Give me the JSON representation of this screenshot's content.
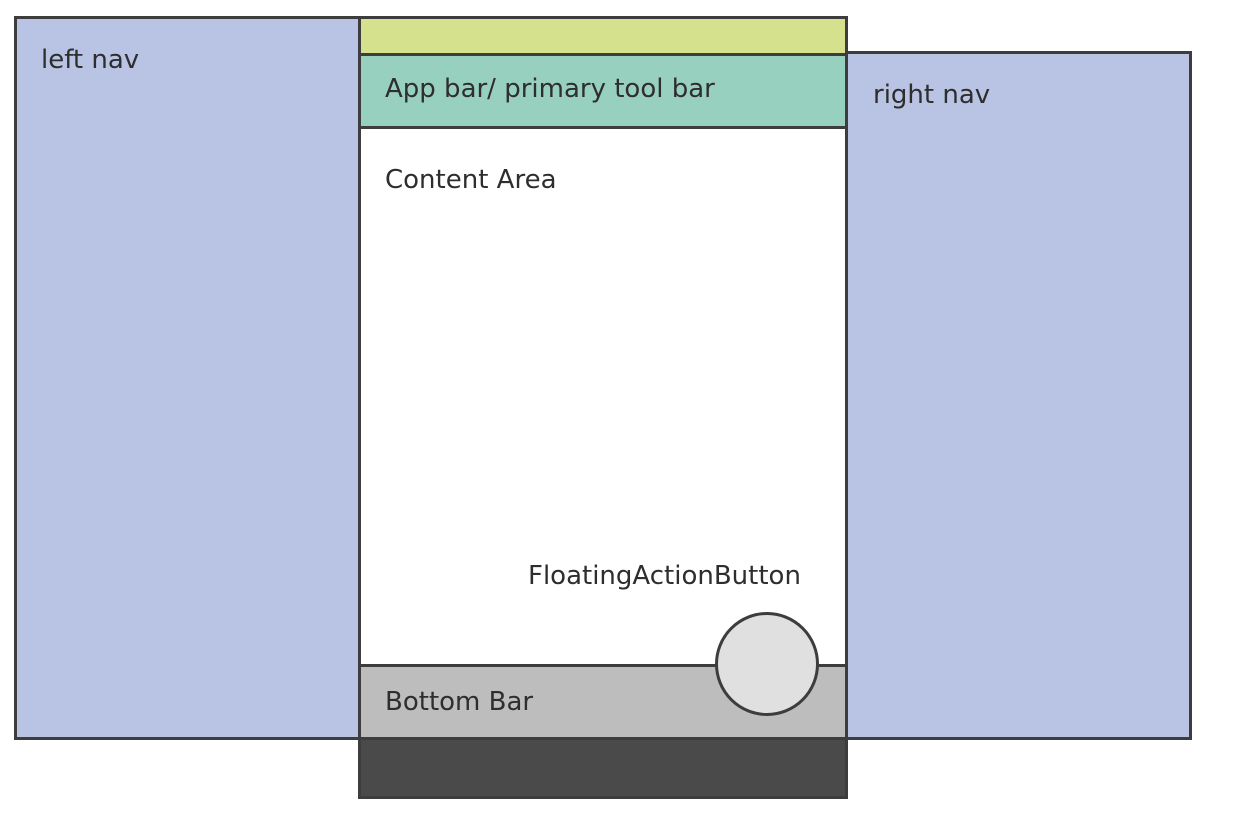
{
  "labels": {
    "left_nav": "left nav",
    "right_nav": "right nav",
    "app_bar": "App bar/ primary tool bar",
    "content_area": "Content Area",
    "fab": "FloatingActionButton",
    "bottom_bar": "Bottom Bar"
  },
  "colors": {
    "nav": "#b9c3e4",
    "status_bar": "#d6e18e",
    "app_bar": "#98d0c0",
    "content": "#ffffff",
    "bottom_bar": "#bdbdbd",
    "system_nav_bar": "#4a4a4a",
    "fab": "#e0e0e0",
    "outline": "#3d3d3d"
  }
}
